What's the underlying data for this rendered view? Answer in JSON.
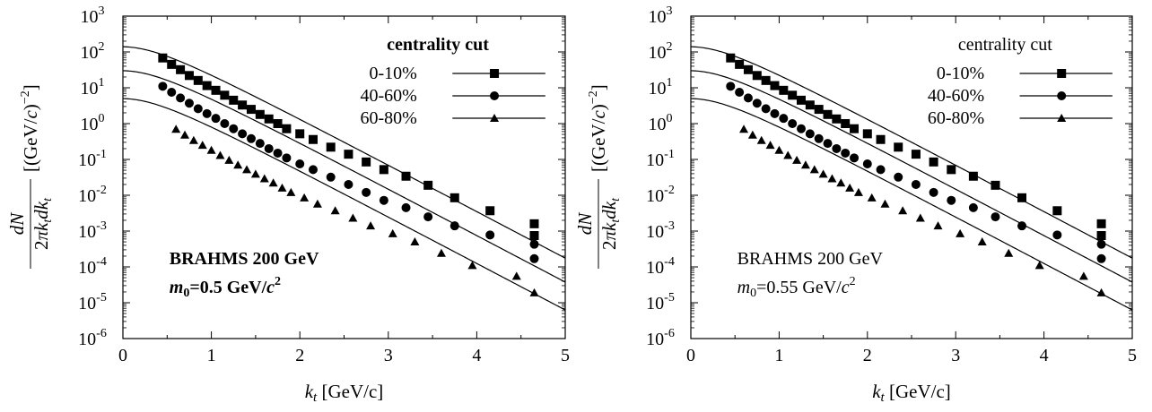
{
  "chart_data": [
    {
      "type": "scatter",
      "title": "",
      "xlabel": "k_t [GeV/c]",
      "ylabel": "dN/(2πk_t dk_t) [(GeV/c)^-2]",
      "yscale": "log",
      "xlim": [
        0,
        5
      ],
      "ylim": [
        1e-06,
        1000
      ],
      "x_ticks": [
        "0",
        "1",
        "2",
        "3",
        "4",
        "5"
      ],
      "y_tick_exponents": [
        "3",
        "2",
        "1",
        "0",
        "-1",
        "-2",
        "-3",
        "-4",
        "-5",
        "-6"
      ],
      "grid": false,
      "legend_title": "centrality cut",
      "legend_title_bold": true,
      "legend_position": "top-right",
      "annotation_line1": "BRAHMS 200 GeV",
      "annotation_m0": "0.5",
      "annotation_units": "GeV/c",
      "annotation_bold": true,
      "series": [
        {
          "name": "0-10%",
          "marker": "square",
          "fit_amp": 140,
          "fit_T": 0.34,
          "points": [
            [
              0.45,
              68
            ],
            [
              0.55,
              45
            ],
            [
              0.65,
              32
            ],
            [
              0.75,
              22
            ],
            [
              0.85,
              16
            ],
            [
              0.95,
              11.5
            ],
            [
              1.05,
              8.5
            ],
            [
              1.15,
              6.2
            ],
            [
              1.25,
              4.5
            ],
            [
              1.35,
              3.3
            ],
            [
              1.45,
              2.5
            ],
            [
              1.55,
              1.8
            ],
            [
              1.65,
              1.35
            ],
            [
              1.75,
              1.0
            ],
            [
              1.85,
              0.72
            ],
            [
              2.0,
              0.52
            ],
            [
              2.15,
              0.36
            ],
            [
              2.35,
              0.22
            ],
            [
              2.55,
              0.14
            ],
            [
              2.75,
              0.085
            ],
            [
              2.95,
              0.052
            ],
            [
              3.2,
              0.034
            ],
            [
              3.45,
              0.019
            ],
            [
              3.75,
              0.0085
            ],
            [
              4.15,
              0.0037
            ],
            [
              4.65,
              0.0016
            ],
            [
              4.65,
              0.00075
            ]
          ]
        },
        {
          "name": "40-60%",
          "marker": "circle",
          "fit_amp": 30,
          "fit_T": 0.34,
          "points": [
            [
              0.45,
              11
            ],
            [
              0.55,
              7.5
            ],
            [
              0.65,
              5.2
            ],
            [
              0.75,
              3.7
            ],
            [
              0.85,
              2.6
            ],
            [
              0.95,
              1.9
            ],
            [
              1.05,
              1.4
            ],
            [
              1.15,
              1.0
            ],
            [
              1.25,
              0.72
            ],
            [
              1.35,
              0.52
            ],
            [
              1.45,
              0.38
            ],
            [
              1.55,
              0.28
            ],
            [
              1.65,
              0.2
            ],
            [
              1.75,
              0.15
            ],
            [
              1.85,
              0.11
            ],
            [
              2.0,
              0.075
            ],
            [
              2.15,
              0.052
            ],
            [
              2.35,
              0.032
            ],
            [
              2.55,
              0.02
            ],
            [
              2.75,
              0.012
            ],
            [
              2.95,
              0.0072
            ],
            [
              3.2,
              0.0045
            ],
            [
              3.45,
              0.0025
            ],
            [
              3.75,
              0.0014
            ],
            [
              4.15,
              0.00078
            ],
            [
              4.65,
              0.00043
            ],
            [
              4.65,
              0.00017
            ]
          ]
        },
        {
          "name": "60-80%",
          "marker": "triangle",
          "fit_amp": 5,
          "fit_T": 0.34,
          "points": [
            [
              0.6,
              0.7
            ],
            [
              0.7,
              0.48
            ],
            [
              0.8,
              0.34
            ],
            [
              0.9,
              0.25
            ],
            [
              1.0,
              0.18
            ],
            [
              1.1,
              0.13
            ],
            [
              1.2,
              0.095
            ],
            [
              1.3,
              0.07
            ],
            [
              1.4,
              0.052
            ],
            [
              1.5,
              0.039
            ],
            [
              1.6,
              0.029
            ],
            [
              1.7,
              0.022
            ],
            [
              1.8,
              0.016
            ],
            [
              1.9,
              0.012
            ],
            [
              2.05,
              0.0085
            ],
            [
              2.2,
              0.0057
            ],
            [
              2.4,
              0.0037
            ],
            [
              2.6,
              0.0023
            ],
            [
              2.8,
              0.0014
            ],
            [
              3.05,
              0.00085
            ],
            [
              3.3,
              0.0005
            ],
            [
              3.6,
              0.00024
            ],
            [
              3.95,
              0.00011
            ],
            [
              4.45,
              5.5e-05
            ],
            [
              4.65,
              1.9e-05
            ]
          ]
        }
      ]
    },
    {
      "type": "scatter",
      "title": "",
      "xlabel": "k_t [GeV/c]",
      "ylabel": "dN/(2πk_t dk_t) [(GeV/c)^-2]",
      "yscale": "log",
      "xlim": [
        0,
        5
      ],
      "ylim": [
        1e-06,
        1000
      ],
      "x_ticks": [
        "0",
        "1",
        "2",
        "3",
        "4",
        "5"
      ],
      "y_tick_exponents": [
        "3",
        "2",
        "1",
        "0",
        "-1",
        "-2",
        "-3",
        "-4",
        "-5",
        "-6"
      ],
      "grid": false,
      "legend_title": "centrality cut",
      "legend_title_bold": false,
      "legend_position": "top-right",
      "annotation_line1": "BRAHMS 200 GeV",
      "annotation_m0": "0.55",
      "annotation_units": "GeV/c",
      "annotation_bold": false,
      "series": [
        {
          "name": "0-10%",
          "marker": "square",
          "fit_amp": 140,
          "fit_T": 0.34,
          "points": [
            [
              0.45,
              68
            ],
            [
              0.55,
              45
            ],
            [
              0.65,
              32
            ],
            [
              0.75,
              22
            ],
            [
              0.85,
              16
            ],
            [
              0.95,
              11.5
            ],
            [
              1.05,
              8.5
            ],
            [
              1.15,
              6.2
            ],
            [
              1.25,
              4.5
            ],
            [
              1.35,
              3.3
            ],
            [
              1.45,
              2.5
            ],
            [
              1.55,
              1.8
            ],
            [
              1.65,
              1.35
            ],
            [
              1.75,
              1.0
            ],
            [
              1.85,
              0.72
            ],
            [
              2.0,
              0.52
            ],
            [
              2.15,
              0.36
            ],
            [
              2.35,
              0.22
            ],
            [
              2.55,
              0.14
            ],
            [
              2.75,
              0.085
            ],
            [
              2.95,
              0.052
            ],
            [
              3.2,
              0.034
            ],
            [
              3.45,
              0.019
            ],
            [
              3.75,
              0.0085
            ],
            [
              4.15,
              0.0037
            ],
            [
              4.65,
              0.0016
            ],
            [
              4.65,
              0.00075
            ]
          ]
        },
        {
          "name": "40-60%",
          "marker": "circle",
          "fit_amp": 30,
          "fit_T": 0.34,
          "points": [
            [
              0.45,
              11
            ],
            [
              0.55,
              7.5
            ],
            [
              0.65,
              5.2
            ],
            [
              0.75,
              3.7
            ],
            [
              0.85,
              2.6
            ],
            [
              0.95,
              1.9
            ],
            [
              1.05,
              1.4
            ],
            [
              1.15,
              1.0
            ],
            [
              1.25,
              0.72
            ],
            [
              1.35,
              0.52
            ],
            [
              1.45,
              0.38
            ],
            [
              1.55,
              0.28
            ],
            [
              1.65,
              0.2
            ],
            [
              1.75,
              0.15
            ],
            [
              1.85,
              0.11
            ],
            [
              2.0,
              0.075
            ],
            [
              2.15,
              0.052
            ],
            [
              2.35,
              0.032
            ],
            [
              2.55,
              0.02
            ],
            [
              2.75,
              0.012
            ],
            [
              2.95,
              0.0072
            ],
            [
              3.2,
              0.0045
            ],
            [
              3.45,
              0.0025
            ],
            [
              3.75,
              0.0014
            ],
            [
              4.15,
              0.00078
            ],
            [
              4.65,
              0.00043
            ],
            [
              4.65,
              0.00017
            ]
          ]
        },
        {
          "name": "60-80%",
          "marker": "triangle",
          "fit_amp": 5,
          "fit_T": 0.34,
          "points": [
            [
              0.6,
              0.7
            ],
            [
              0.7,
              0.48
            ],
            [
              0.8,
              0.34
            ],
            [
              0.9,
              0.25
            ],
            [
              1.0,
              0.18
            ],
            [
              1.1,
              0.13
            ],
            [
              1.2,
              0.095
            ],
            [
              1.3,
              0.07
            ],
            [
              1.4,
              0.052
            ],
            [
              1.5,
              0.039
            ],
            [
              1.6,
              0.029
            ],
            [
              1.7,
              0.022
            ],
            [
              1.8,
              0.016
            ],
            [
              1.9,
              0.012
            ],
            [
              2.05,
              0.0085
            ],
            [
              2.2,
              0.0057
            ],
            [
              2.4,
              0.0037
            ],
            [
              2.6,
              0.0023
            ],
            [
              2.8,
              0.0014
            ],
            [
              3.05,
              0.00085
            ],
            [
              3.3,
              0.0005
            ],
            [
              3.6,
              0.00024
            ],
            [
              3.95,
              0.00011
            ],
            [
              4.45,
              5.5e-05
            ],
            [
              4.65,
              1.9e-05
            ]
          ]
        }
      ]
    }
  ]
}
